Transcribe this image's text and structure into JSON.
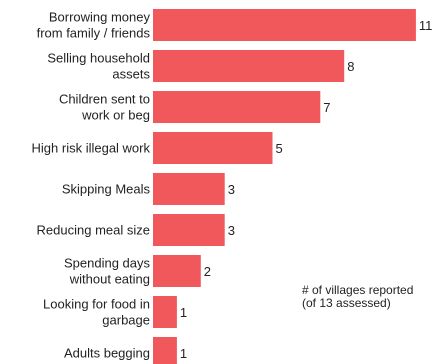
{
  "chart_data": {
    "type": "bar",
    "orientation": "horizontal",
    "categories": [
      [
        "Borrowing money",
        "from family / friends"
      ],
      [
        "Selling household",
        "assets"
      ],
      [
        "Children sent to",
        "work or beg"
      ],
      [
        "High risk illegal work"
      ],
      [
        "Skipping Meals"
      ],
      [
        "Reducing meal size"
      ],
      [
        "Spending days",
        "without eating"
      ],
      [
        "Looking for food in",
        "garbage"
      ],
      [
        "Adults begging"
      ]
    ],
    "values": [
      11,
      8,
      7,
      5,
      3,
      3,
      2,
      1,
      1
    ],
    "data_labels": [
      "11",
      "8",
      "7",
      "5",
      "3",
      "3",
      "2",
      "1",
      "1"
    ],
    "xlim": [
      0,
      11
    ],
    "grid": false,
    "legend": "none",
    "bar_color": "#f0585c",
    "annotation": [
      "# of villages reported",
      "(of 13 assessed)"
    ]
  }
}
